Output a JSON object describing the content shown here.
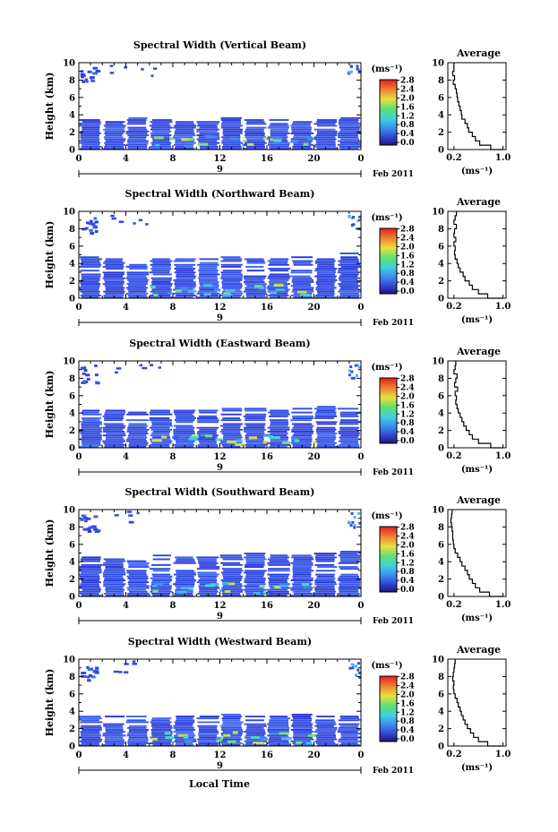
{
  "figure": {
    "xlabel": "Local Time",
    "date_label": "Feb 2011",
    "day_label": "9",
    "x_ticks": [
      "0",
      "4",
      "8",
      "12",
      "16",
      "20",
      "0"
    ],
    "y_ticks": [
      "0",
      "2",
      "4",
      "6",
      "8",
      "10"
    ],
    "ylabel": "Height (km)",
    "cbar_unit": "(ms⁻¹)",
    "cbar_ticks": [
      "0.0",
      "0.4",
      "0.8",
      "1.2",
      "1.6",
      "2.0",
      "2.4",
      "2.8"
    ],
    "avg_title": "Average",
    "avg_xticks": [
      "0.2",
      "1.0"
    ],
    "avg_xlabel": "(ms⁻¹)"
  },
  "chart_data": [
    {
      "type": "heatmap",
      "title": "Spectral Width (Vertical Beam)",
      "xlim": [
        0,
        24
      ],
      "ylim": [
        0,
        10
      ],
      "clim": [
        0.0,
        2.8
      ],
      "tops_km": [
        3.5,
        3.3,
        3.6,
        3.4,
        3.2,
        3.4,
        3.6,
        3.5,
        3.4,
        3.3,
        3.5,
        3.6
      ],
      "average_profile": {
        "height_km": [
          0,
          0.5,
          1,
          1.5,
          2,
          2.5,
          3,
          3.5,
          4,
          4.5,
          5,
          5.5,
          6,
          6.5,
          7,
          7.5,
          8,
          8.5,
          9,
          9.5,
          10
        ],
        "width_ms": [
          1.0,
          0.8,
          0.62,
          0.55,
          0.5,
          0.44,
          0.42,
          0.38,
          0.33,
          0.32,
          0.3,
          0.28,
          0.26,
          0.25,
          0.24,
          0.22,
          0.19,
          0.21,
          0.18,
          0.2,
          0.2
        ]
      }
    },
    {
      "type": "heatmap",
      "title": "Spectral Width (Northward Beam)",
      "xlim": [
        0,
        24
      ],
      "ylim": [
        0,
        10
      ],
      "clim": [
        0.0,
        2.8
      ],
      "tops_km": [
        4.8,
        4.6,
        4.4,
        4.5,
        4.6,
        4.8,
        4.9,
        4.7,
        4.6,
        4.8,
        5.0,
        5.2
      ],
      "average_profile": {
        "height_km": [
          0,
          0.5,
          1,
          1.5,
          2,
          2.5,
          3,
          3.5,
          4,
          4.5,
          5,
          5.5,
          6,
          6.5,
          7,
          7.5,
          8,
          8.5,
          9,
          9.5,
          10
        ],
        "width_ms": [
          1.0,
          0.75,
          0.6,
          0.5,
          0.45,
          0.38,
          0.35,
          0.3,
          0.27,
          0.25,
          0.22,
          0.21,
          0.22,
          0.2,
          0.23,
          0.2,
          0.21,
          0.24,
          0.2,
          0.22,
          0.24
        ]
      }
    },
    {
      "type": "heatmap",
      "title": "Spectral Width (Eastward Beam)",
      "xlim": [
        0,
        24
      ],
      "ylim": [
        0,
        10
      ],
      "clim": [
        0.0,
        2.8
      ],
      "tops_km": [
        4.5,
        4.2,
        4.0,
        4.3,
        4.4,
        4.2,
        4.6,
        4.5,
        4.3,
        4.6,
        4.8,
        4.5
      ],
      "average_profile": {
        "height_km": [
          0,
          0.5,
          1,
          1.5,
          2,
          2.5,
          3,
          3.5,
          4,
          4.5,
          5,
          5.5,
          6,
          6.5,
          7,
          7.5,
          8,
          8.5,
          9,
          9.5,
          10
        ],
        "width_ms": [
          1.0,
          0.8,
          0.6,
          0.5,
          0.45,
          0.4,
          0.36,
          0.33,
          0.3,
          0.27,
          0.25,
          0.23,
          0.24,
          0.22,
          0.26,
          0.21,
          0.23,
          0.25,
          0.2,
          0.22,
          0.23
        ]
      }
    },
    {
      "type": "heatmap",
      "title": "Spectral Width (Southward Beam)",
      "xlim": [
        0,
        24
      ],
      "ylim": [
        0,
        10
      ],
      "clim": [
        0.0,
        2.8
      ],
      "tops_km": [
        4.6,
        4.4,
        4.5,
        4.7,
        4.5,
        4.6,
        4.8,
        4.9,
        4.7,
        4.8,
        5.0,
        5.1
      ],
      "average_profile": {
        "height_km": [
          0,
          0.5,
          1,
          1.5,
          2,
          2.5,
          3,
          3.5,
          4,
          4.5,
          5,
          5.5,
          6,
          6.5,
          7,
          7.5,
          8,
          8.5,
          9,
          9.5,
          10
        ],
        "width_ms": [
          1.0,
          0.78,
          0.62,
          0.55,
          0.5,
          0.45,
          0.42,
          0.38,
          0.33,
          0.3,
          0.26,
          0.22,
          0.2,
          0.19,
          0.18,
          0.18,
          0.17,
          0.16,
          0.15,
          0.16,
          0.17
        ]
      }
    },
    {
      "type": "heatmap",
      "title": "Spectral Width (Westward Beam)",
      "xlim": [
        0,
        24
      ],
      "ylim": [
        0,
        10
      ],
      "clim": [
        0.0,
        2.8
      ],
      "tops_km": [
        3.6,
        3.4,
        3.5,
        3.3,
        3.4,
        3.5,
        3.6,
        3.4,
        3.5,
        3.6,
        3.7,
        3.5
      ],
      "average_profile": {
        "height_km": [
          0,
          0.5,
          1,
          1.5,
          2,
          2.5,
          3,
          3.5,
          4,
          4.5,
          5,
          5.5,
          6,
          6.5,
          7,
          7.5,
          8,
          8.5,
          9,
          9.5,
          10
        ],
        "width_ms": [
          1.0,
          0.75,
          0.6,
          0.52,
          0.47,
          0.42,
          0.38,
          0.35,
          0.32,
          0.3,
          0.27,
          0.25,
          0.22,
          0.2,
          0.19,
          0.2,
          0.18,
          0.19,
          0.2,
          0.21,
          0.22
        ]
      }
    }
  ]
}
